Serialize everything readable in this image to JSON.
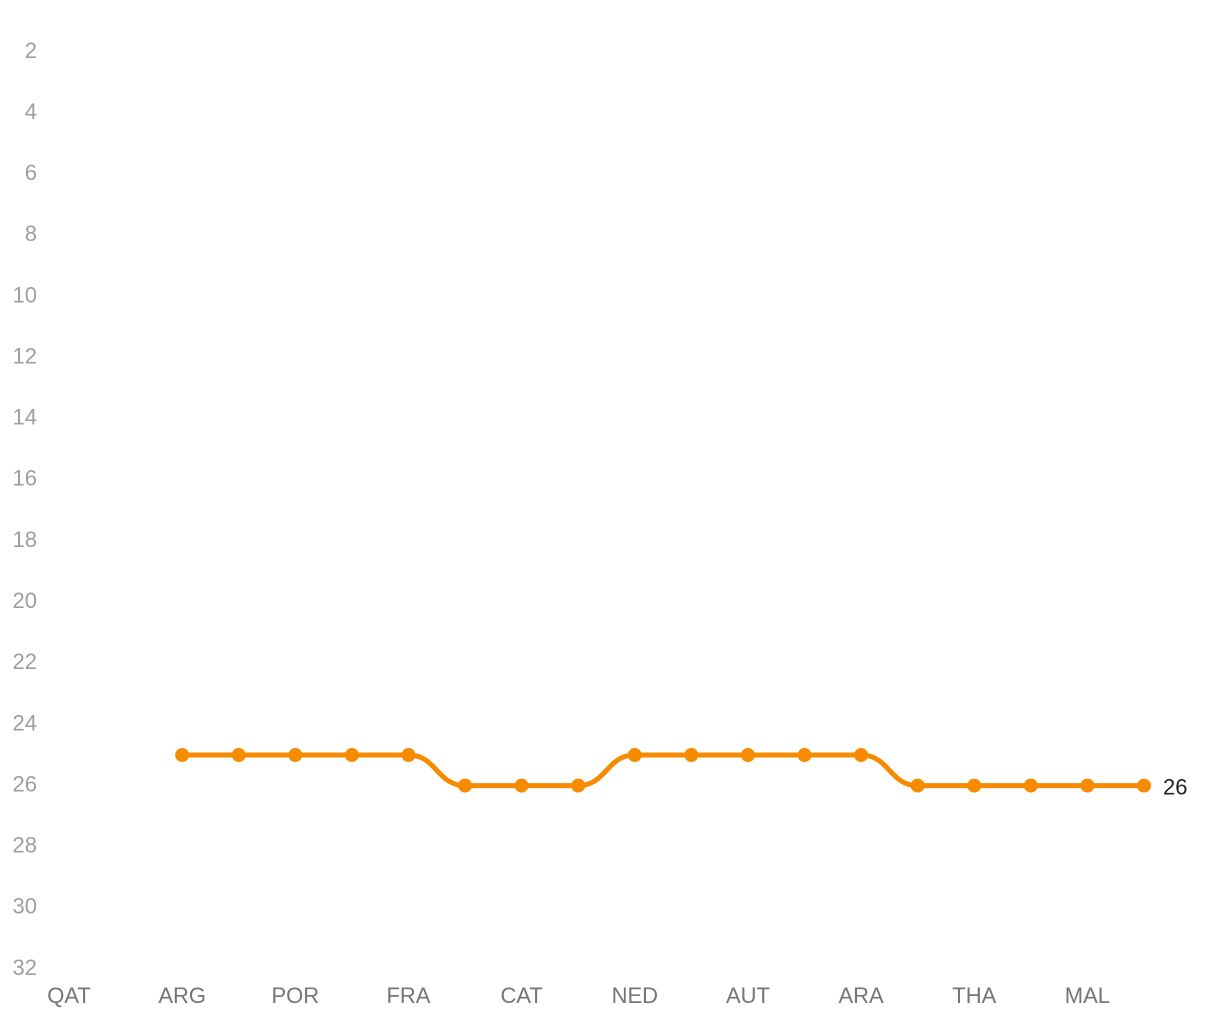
{
  "chart_data": {
    "type": "line",
    "categories": [
      "QAT",
      null,
      "ARG",
      null,
      "POR",
      null,
      "FRA",
      null,
      "CAT",
      null,
      "NED",
      null,
      "AUT",
      null,
      "ARA",
      null,
      "THA",
      null,
      "MAL",
      null
    ],
    "series": [
      {
        "color": "#f68b00",
        "values": [
          null,
          null,
          25,
          25,
          25,
          25,
          25,
          26,
          26,
          26,
          25,
          25,
          25,
          25,
          25,
          26,
          26,
          26,
          26,
          26
        ]
      }
    ],
    "ylim": [
      2,
      32
    ],
    "y_inverted": true,
    "yticks": [
      2,
      4,
      6,
      8,
      10,
      12,
      14,
      16,
      18,
      20,
      22,
      24,
      26,
      28,
      30,
      32
    ],
    "grid": false,
    "end_label": true
  }
}
